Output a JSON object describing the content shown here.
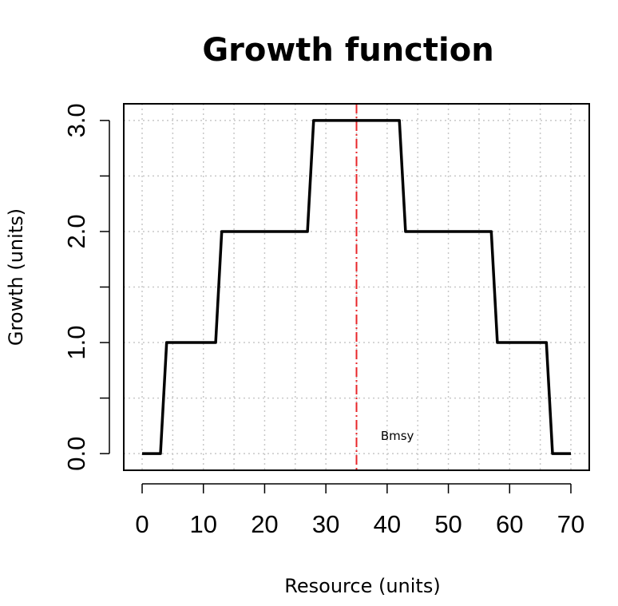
{
  "chart_data": {
    "type": "line",
    "title": "Growth function",
    "xlabel": "Resource (units)",
    "ylabel": "Growth (units)",
    "xlim": [
      -3,
      73
    ],
    "ylim": [
      -0.15,
      3.15
    ],
    "x_ticks": [
      0,
      10,
      20,
      30,
      40,
      50,
      60,
      70
    ],
    "x_tick_labels": [
      "0",
      "10",
      "20",
      "30",
      "40",
      "50",
      "60",
      "70"
    ],
    "y_ticks": [
      0,
      1,
      2,
      3
    ],
    "y_tick_labels": [
      "0.0",
      "1.0",
      "2.0",
      "3.0"
    ],
    "grid": true,
    "series": [
      {
        "color": "#000000",
        "line_style": "solid",
        "x": [
          0,
          3,
          4,
          12,
          13,
          27,
          28,
          42,
          43,
          57,
          58,
          66,
          67,
          70
        ],
        "y": [
          0,
          0,
          1,
          1,
          2,
          2,
          3,
          3,
          2,
          2,
          1,
          1,
          0,
          0
        ]
      }
    ],
    "reference_lines": [
      {
        "orientation": "vertical",
        "x": 35,
        "color": "#e8262a",
        "line_style": "dashdot"
      }
    ],
    "annotations": [
      {
        "text": "Bmsy",
        "x": 37,
        "y": 0.16
      }
    ]
  }
}
